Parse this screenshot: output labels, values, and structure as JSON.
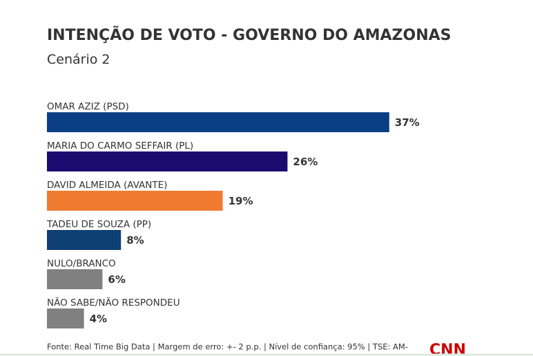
{
  "chart_data": {
    "type": "hbar",
    "title": "INTENÇÃO DE VOTO - GOVERNO DO AMAZONAS",
    "subtitle": "Cenário 2",
    "categories": [
      "OMAR AZIZ (PSD)",
      "MARIA DO CARMO SEFFAIR (PL)",
      "DAVID ALMEIDA (AVANTE)",
      "TADEU DE SOUZA (PP)",
      "NULO/BRANCO",
      "NÃO SABE/NÃO RESPONDEU"
    ],
    "values": [
      37,
      26,
      19,
      8,
      6,
      4
    ],
    "value_labels": [
      "37%",
      "26%",
      "19%",
      "8%",
      "6%",
      "4%"
    ],
    "colors": [
      "#0b3f85",
      "#1c0b6e",
      "#f07a30",
      "#0e3f73",
      "#808080",
      "#808080"
    ],
    "source": "Fonte: Real Time Big Data | Margem de erro: +- 2 p.p. | Nível de confiança: 95% | TSE: AM-",
    "logo": "CNN"
  }
}
